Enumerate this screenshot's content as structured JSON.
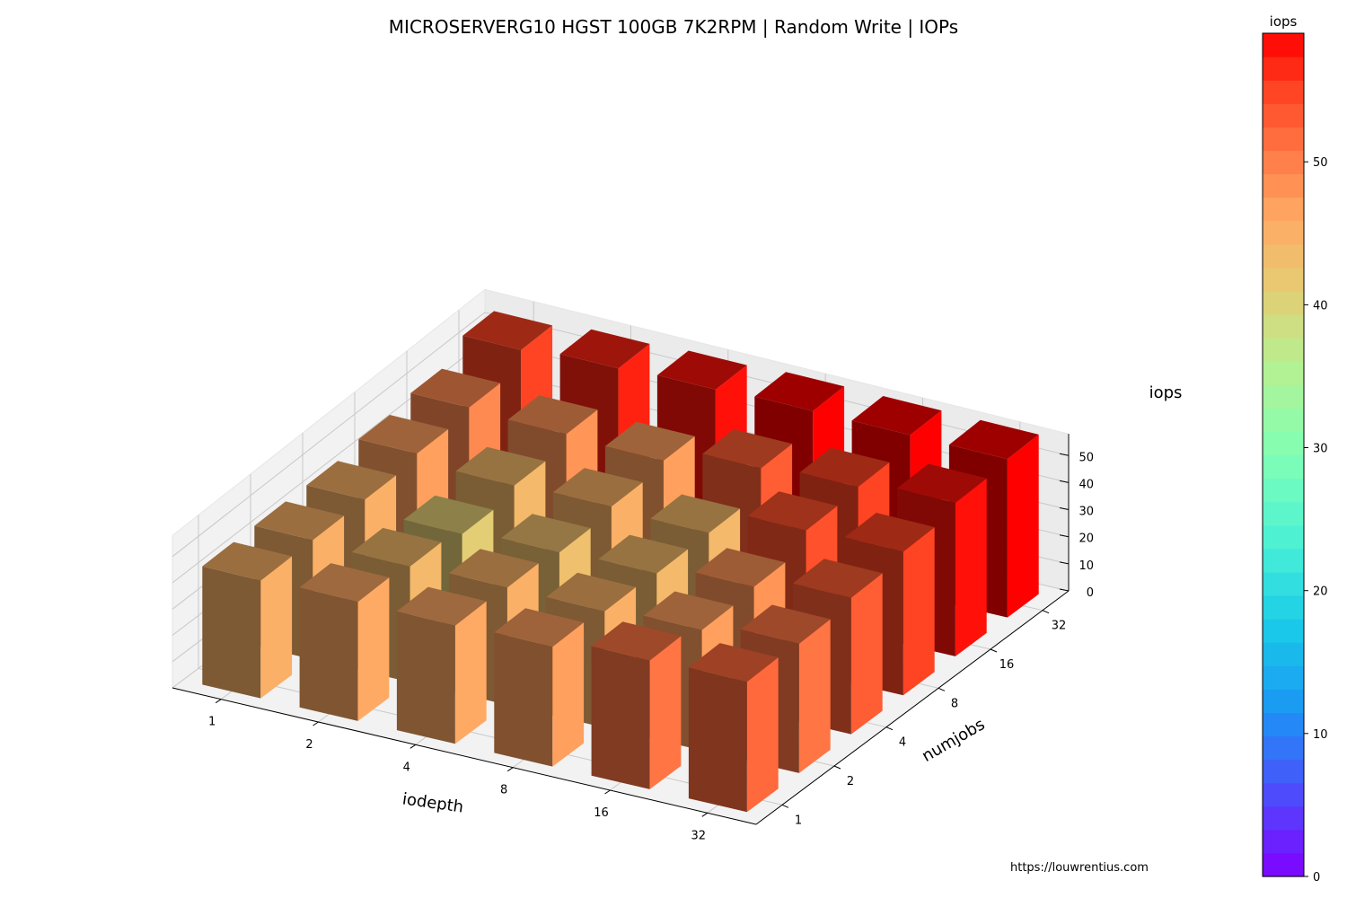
{
  "chart_data": {
    "type": "bar3d",
    "title": "MICROSERVERG10 HGST 100GB 7K2RPM | Random Write | IOPs",
    "xlabel": "iodepth",
    "ylabel": "numjobs",
    "zlabel": "iops",
    "x_categories": [
      "1",
      "2",
      "4",
      "8",
      "16",
      "32"
    ],
    "y_categories": [
      "1",
      "2",
      "4",
      "8",
      "16",
      "32"
    ],
    "zlim": [
      0,
      59
    ],
    "z_ticks": [
      "0",
      "10",
      "20",
      "30",
      "40",
      "50"
    ],
    "grid": true,
    "colormap": "rainbow",
    "colorbar": {
      "label": "iops",
      "ticks": [
        "0",
        "10",
        "20",
        "30",
        "40",
        "50"
      ],
      "range": [
        0,
        59
      ]
    },
    "values": [
      [
        45,
        46,
        46,
        47,
        51,
        52
      ],
      [
        45,
        44,
        45,
        45,
        47,
        51
      ],
      [
        45,
        41,
        43,
        44,
        48,
        53
      ],
      [
        47,
        44,
        45,
        44,
        54,
        55
      ],
      [
        49,
        48,
        47,
        53,
        55,
        58
      ],
      [
        55,
        57,
        58,
        59,
        59,
        59
      ]
    ]
  },
  "credit": "https://louwrentius.com"
}
